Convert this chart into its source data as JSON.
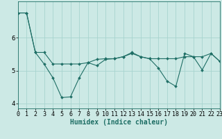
{
  "title": "",
  "xlabel": "Humidex (Indice chaleur)",
  "ylabel": "",
  "bg_color": "#cce9e5",
  "grid_color": "#a8d4cf",
  "line_color": "#1e6e65",
  "line1_x": [
    0,
    1,
    2,
    3,
    4,
    5,
    6,
    7,
    8,
    9,
    10,
    11,
    12,
    13,
    14,
    15,
    16,
    17,
    18,
    19,
    20,
    21,
    22,
    23
  ],
  "line1_y": [
    6.75,
    6.75,
    5.55,
    5.55,
    5.2,
    5.2,
    5.2,
    5.2,
    5.24,
    5.34,
    5.36,
    5.36,
    5.42,
    5.52,
    5.42,
    5.36,
    5.36,
    5.36,
    5.36,
    5.42,
    5.42,
    5.42,
    5.52,
    5.28
  ],
  "line2_x": [
    0,
    1,
    2,
    3,
    4,
    5,
    6,
    7,
    8,
    9,
    10,
    11,
    12,
    13,
    14,
    15,
    16,
    17,
    18,
    19,
    20,
    21,
    22,
    23
  ],
  "line2_y": [
    6.75,
    6.75,
    5.55,
    5.2,
    4.78,
    4.18,
    4.2,
    4.78,
    5.24,
    5.15,
    5.34,
    5.36,
    5.42,
    5.55,
    5.42,
    5.36,
    5.08,
    4.68,
    4.52,
    5.52,
    5.42,
    5.02,
    5.52,
    5.28
  ],
  "xlim": [
    0,
    23
  ],
  "ylim": [
    3.85,
    7.1
  ],
  "yticks": [
    4,
    5,
    6
  ],
  "xticks": [
    0,
    1,
    2,
    3,
    4,
    5,
    6,
    7,
    8,
    9,
    10,
    11,
    12,
    13,
    14,
    15,
    16,
    17,
    18,
    19,
    20,
    21,
    22,
    23
  ],
  "font_family": "monospace",
  "tick_fontsize": 6.0,
  "xlabel_fontsize": 7.0
}
